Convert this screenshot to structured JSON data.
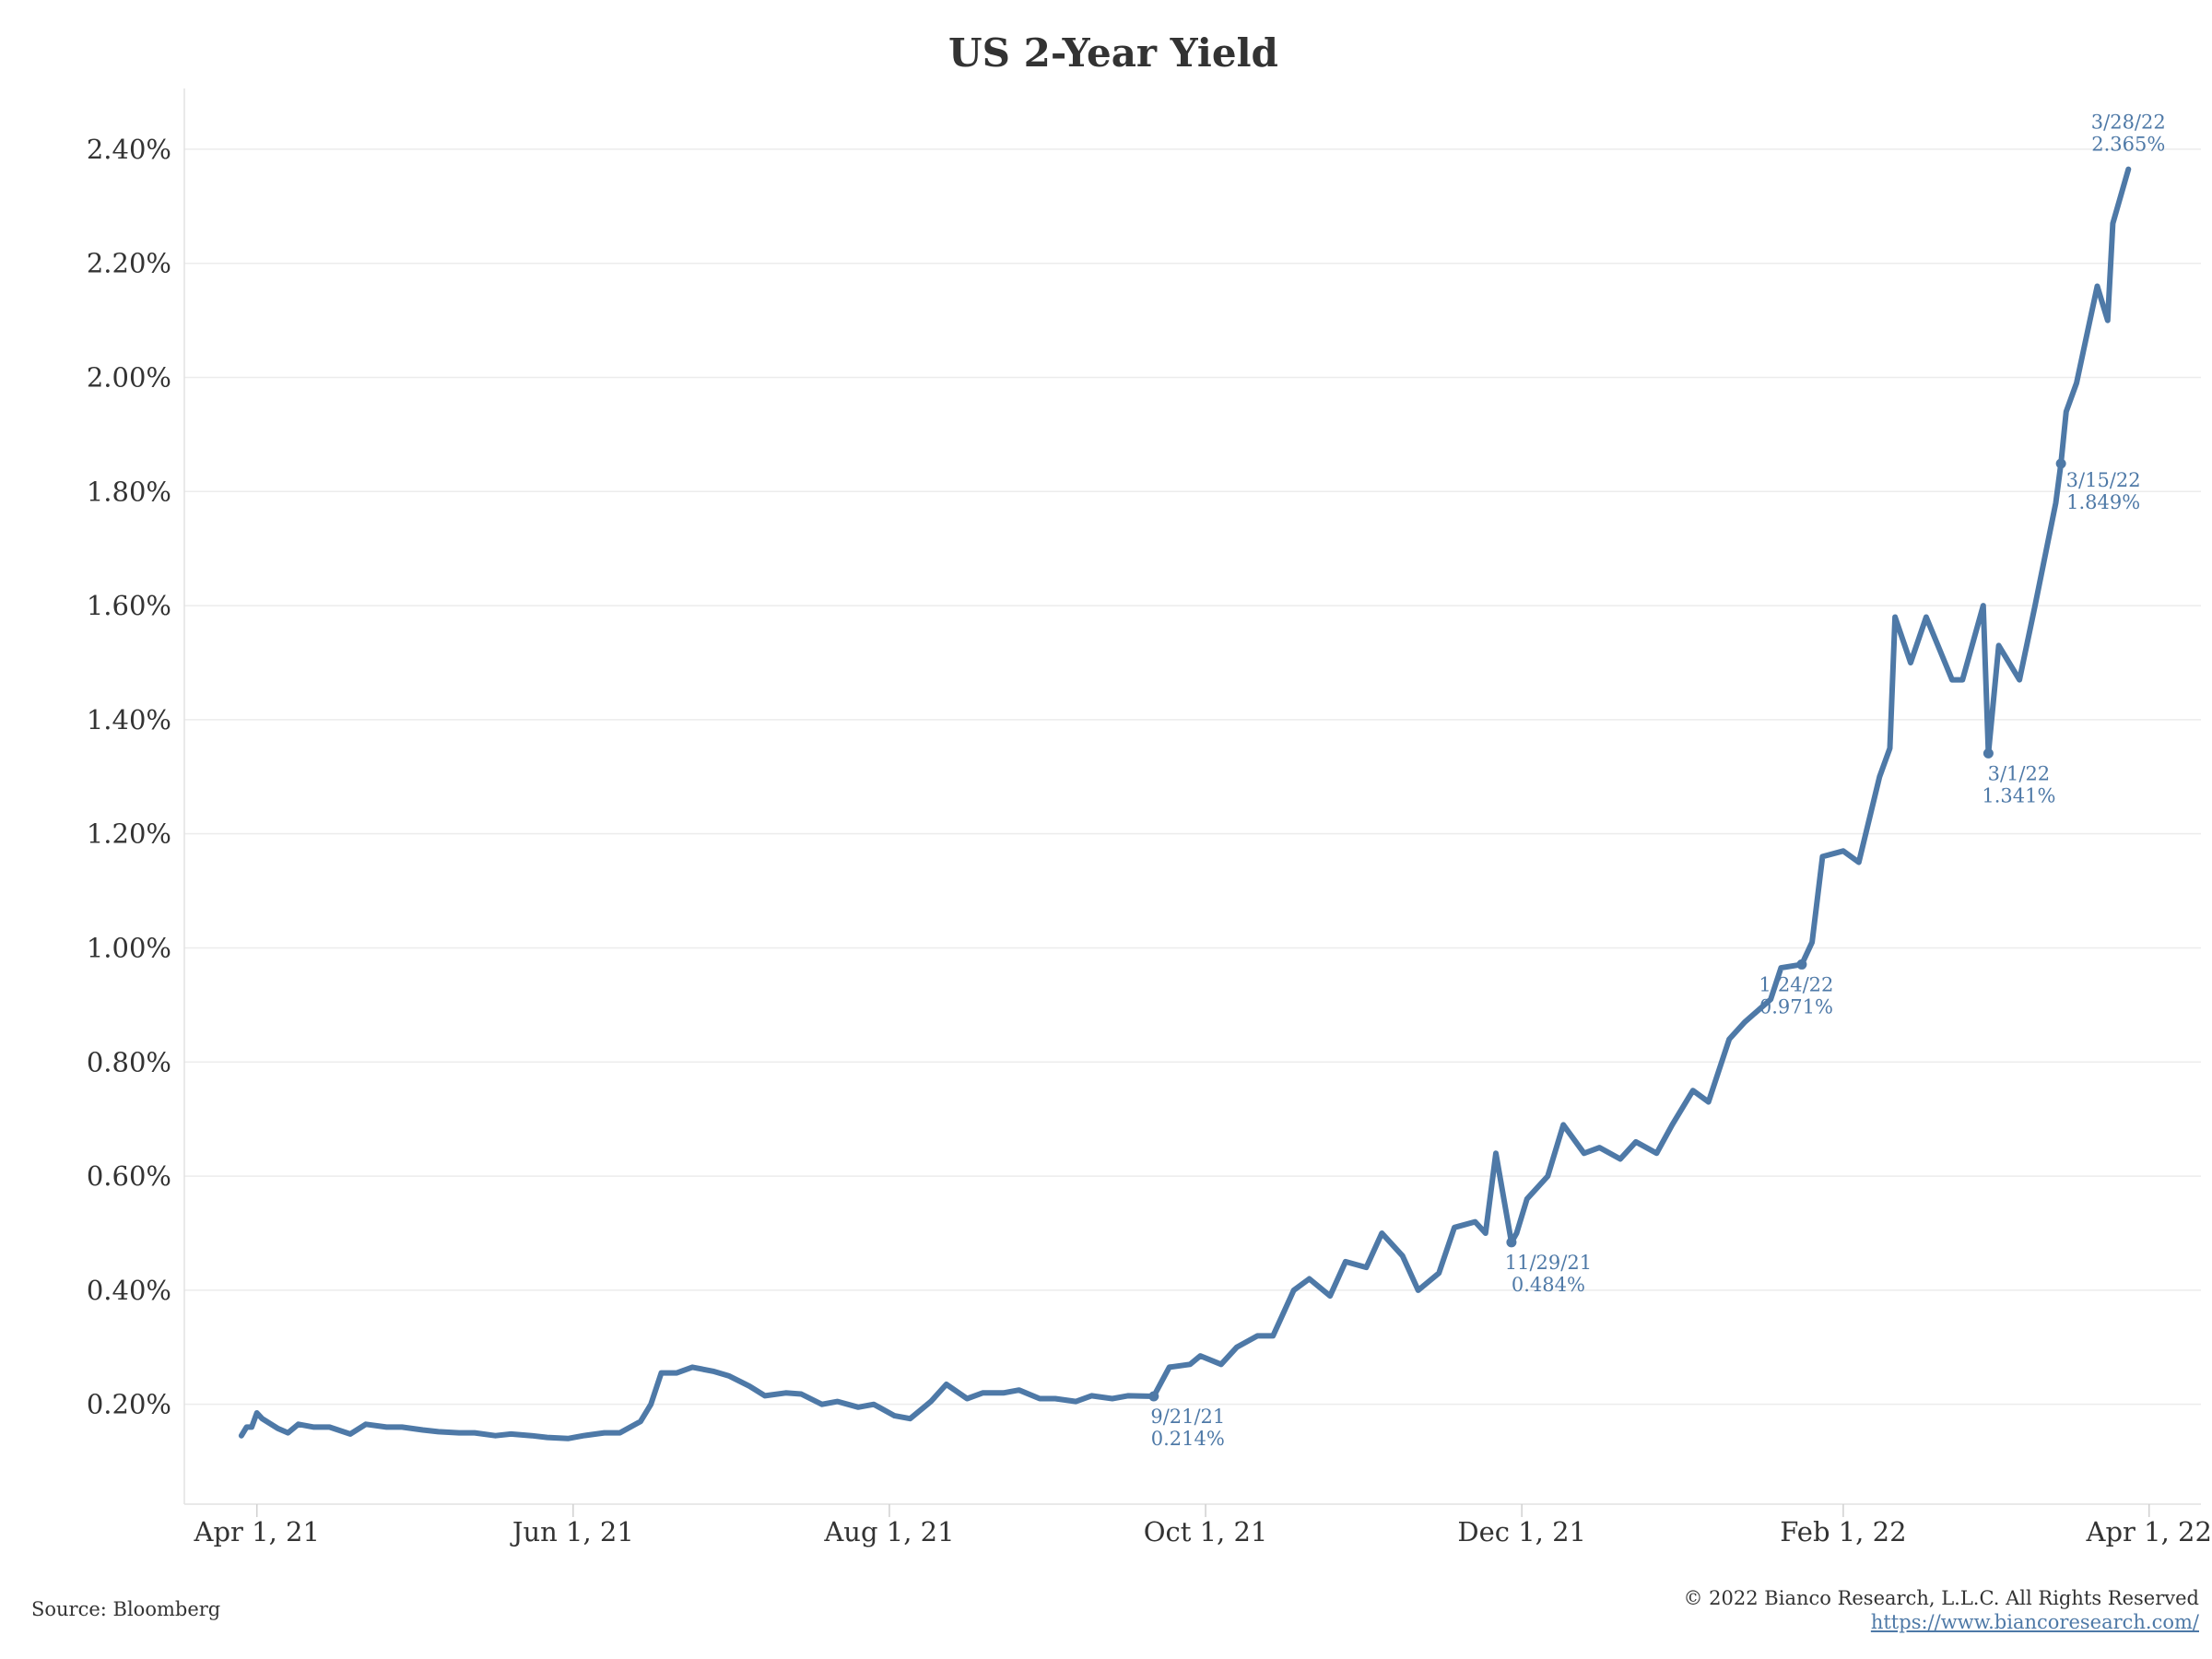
{
  "chart_data": {
    "type": "line",
    "title": "US 2-Year Yield",
    "xlabel": "",
    "ylabel": "",
    "x_ticks": [
      "Apr 1, 21",
      "Jun 1, 21",
      "Aug 1, 21",
      "Oct 1, 21",
      "Dec 1, 21",
      "Feb 1, 22",
      "Apr 1, 22"
    ],
    "y_ticks": [
      "0.20%",
      "0.40%",
      "0.60%",
      "0.80%",
      "1.00%",
      "1.20%",
      "1.40%",
      "1.60%",
      "1.80%",
      "2.00%",
      "2.20%",
      "2.40%"
    ],
    "xlim": [
      "2021-03-18",
      "2022-04-11"
    ],
    "ylim": [
      0.025,
      2.5
    ],
    "grid": "horizontal",
    "color": "#4e79a7",
    "series": [
      {
        "x": [
          "2021-03-29",
          "2021-03-30",
          "2021-03-31",
          "2021-04-01",
          "2021-04-02",
          "2021-04-05",
          "2021-04-07",
          "2021-04-09",
          "2021-04-12",
          "2021-04-15",
          "2021-04-19",
          "2021-04-22",
          "2021-04-26",
          "2021-04-29",
          "2021-05-03",
          "2021-05-06",
          "2021-05-10",
          "2021-05-13",
          "2021-05-17",
          "2021-05-20",
          "2021-05-24",
          "2021-05-27",
          "2021-05-31",
          "2021-06-03",
          "2021-06-07",
          "2021-06-10",
          "2021-06-14",
          "2021-06-16",
          "2021-06-18",
          "2021-06-21",
          "2021-06-24",
          "2021-06-28",
          "2021-07-01",
          "2021-07-05",
          "2021-07-08",
          "2021-07-12",
          "2021-07-15",
          "2021-07-19",
          "2021-07-22",
          "2021-07-26",
          "2021-07-29",
          "2021-08-02",
          "2021-08-05",
          "2021-08-09",
          "2021-08-12",
          "2021-08-16",
          "2021-08-19",
          "2021-08-23",
          "2021-08-26",
          "2021-08-30",
          "2021-09-02",
          "2021-09-06",
          "2021-09-09",
          "2021-09-13",
          "2021-09-16",
          "2021-09-21",
          "2021-09-24",
          "2021-09-28",
          "2021-09-30",
          "2021-10-04",
          "2021-10-07",
          "2021-10-11",
          "2021-10-14",
          "2021-10-18",
          "2021-10-21",
          "2021-10-25",
          "2021-10-28",
          "2021-11-01",
          "2021-11-04",
          "2021-11-08",
          "2021-11-11",
          "2021-11-15",
          "2021-11-18",
          "2021-11-22",
          "2021-11-24",
          "2021-11-26",
          "2021-11-29",
          "2021-11-30",
          "2021-12-02",
          "2021-12-06",
          "2021-12-09",
          "2021-12-13",
          "2021-12-16",
          "2021-12-20",
          "2021-12-23",
          "2021-12-27",
          "2021-12-30",
          "2022-01-03",
          "2022-01-06",
          "2022-01-10",
          "2022-01-13",
          "2022-01-18",
          "2022-01-20",
          "2022-01-24",
          "2022-01-26",
          "2022-01-28",
          "2022-02-01",
          "2022-02-04",
          "2022-02-08",
          "2022-02-10",
          "2022-02-11",
          "2022-02-14",
          "2022-02-17",
          "2022-02-22",
          "2022-02-24",
          "2022-02-28",
          "2022-03-01",
          "2022-03-03",
          "2022-03-07",
          "2022-03-10",
          "2022-03-14",
          "2022-03-15",
          "2022-03-16",
          "2022-03-18",
          "2022-03-22",
          "2022-03-24",
          "2022-03-25",
          "2022-03-28"
        ],
        "y": [
          0.145,
          0.16,
          0.16,
          0.185,
          0.175,
          0.158,
          0.15,
          0.165,
          0.16,
          0.16,
          0.148,
          0.165,
          0.16,
          0.16,
          0.155,
          0.152,
          0.15,
          0.15,
          0.145,
          0.148,
          0.145,
          0.142,
          0.14,
          0.145,
          0.15,
          0.15,
          0.17,
          0.2,
          0.255,
          0.255,
          0.265,
          0.258,
          0.25,
          0.232,
          0.215,
          0.22,
          0.218,
          0.2,
          0.205,
          0.195,
          0.2,
          0.18,
          0.175,
          0.205,
          0.235,
          0.21,
          0.22,
          0.22,
          0.225,
          0.21,
          0.21,
          0.205,
          0.215,
          0.21,
          0.215,
          0.214,
          0.265,
          0.27,
          0.285,
          0.27,
          0.3,
          0.32,
          0.32,
          0.4,
          0.42,
          0.39,
          0.45,
          0.44,
          0.5,
          0.46,
          0.4,
          0.43,
          0.51,
          0.52,
          0.5,
          0.64,
          0.484,
          0.5,
          0.56,
          0.6,
          0.69,
          0.64,
          0.65,
          0.63,
          0.66,
          0.64,
          0.69,
          0.75,
          0.73,
          0.84,
          0.87,
          0.91,
          0.965,
          0.971,
          1.01,
          1.16,
          1.17,
          1.15,
          1.3,
          1.35,
          1.58,
          1.5,
          1.58,
          1.47,
          1.47,
          1.6,
          1.341,
          1.53,
          1.47,
          1.6,
          1.78,
          1.849,
          1.94,
          1.99,
          2.16,
          2.1,
          2.27,
          2.365
        ]
      }
    ],
    "annotations": [
      {
        "date_label": "9/21/21",
        "value_label": "0.214%",
        "x": "2021-09-21",
        "y": 0.214,
        "marker": true
      },
      {
        "date_label": "11/29/21",
        "value_label": "0.484%",
        "x": "2021-11-29",
        "y": 0.484,
        "marker": true
      },
      {
        "date_label": "1/24/22",
        "value_label": "0.971%",
        "x": "2022-01-24",
        "y": 0.971,
        "marker": true
      },
      {
        "date_label": "3/1/22",
        "value_label": "1.341%",
        "x": "2022-03-01",
        "y": 1.341,
        "marker": true
      },
      {
        "date_label": "3/15/22",
        "value_label": "1.849%",
        "x": "2022-03-15",
        "y": 1.849,
        "marker": true
      },
      {
        "date_label": "3/28/22",
        "value_label": "2.365%",
        "x": "2022-03-28",
        "y": 2.365,
        "marker": false
      }
    ]
  },
  "footer": {
    "source": "Source: Bloomberg",
    "copyright": "© 2022 Bianco Research, L.L.C. All Rights Reserved",
    "website": "https://www.biancoresearch.com/"
  }
}
